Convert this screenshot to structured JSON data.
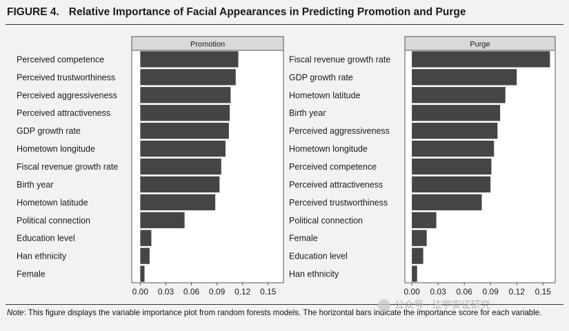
{
  "figure": {
    "number": "FIGURE 4.",
    "title": "Relative Importance of Facial Appearances in Predicting Promotion and Purge"
  },
  "note": {
    "label": "Note",
    "text": ": This figure displays the variable importance plot from random forests models. The horizontal bars indicate the importance score for each variable."
  },
  "watermark": {
    "text": "公众号 · 法学实证研究"
  },
  "colors": {
    "bar": "#454545",
    "strip": "#d9d9d9",
    "panel_bg": "#ffffff",
    "page_bg": "#f2f2f2"
  },
  "chart_data": [
    {
      "type": "bar",
      "orientation": "horizontal",
      "title": "Promotion",
      "categories": [
        "Perceived competence",
        "Perceived trustworthiness",
        "Perceived aggressiveness",
        "Perceived attractiveness",
        "GDP growth rate",
        "Hometown longitude",
        "Fiscal revenue growth rate",
        "Birth year",
        "Hometown latitude",
        "Political connection",
        "Education level",
        "Han ethnicity",
        "Female"
      ],
      "values": [
        0.115,
        0.112,
        0.106,
        0.105,
        0.104,
        0.1,
        0.095,
        0.093,
        0.088,
        0.052,
        0.013,
        0.011,
        0.005
      ],
      "x_ticks": [
        "0.00",
        "0.03",
        "0.06",
        "0.09",
        "0.12",
        "0.15"
      ],
      "xlim": [
        -0.01,
        0.168
      ],
      "grid": false
    },
    {
      "type": "bar",
      "orientation": "horizontal",
      "title": "Purge",
      "categories": [
        "Fiscal revenue growth rate",
        "GDP growth rate",
        "Hometown latitude",
        "Birth year",
        "Perceived aggressiveness",
        "Hometown longitude",
        "Perceived competence",
        "Perceived attractiveness",
        "Perceived trustworthiness",
        "Political connection",
        "Female",
        "Education level",
        "Han ethnicity"
      ],
      "values": [
        0.158,
        0.12,
        0.107,
        0.101,
        0.098,
        0.094,
        0.091,
        0.09,
        0.08,
        0.028,
        0.017,
        0.013,
        0.006
      ],
      "x_ticks": [
        "0.00",
        "0.03",
        "0.06",
        "0.09",
        "0.12",
        "0.15"
      ],
      "xlim": [
        -0.008,
        0.164
      ],
      "grid": false
    }
  ]
}
